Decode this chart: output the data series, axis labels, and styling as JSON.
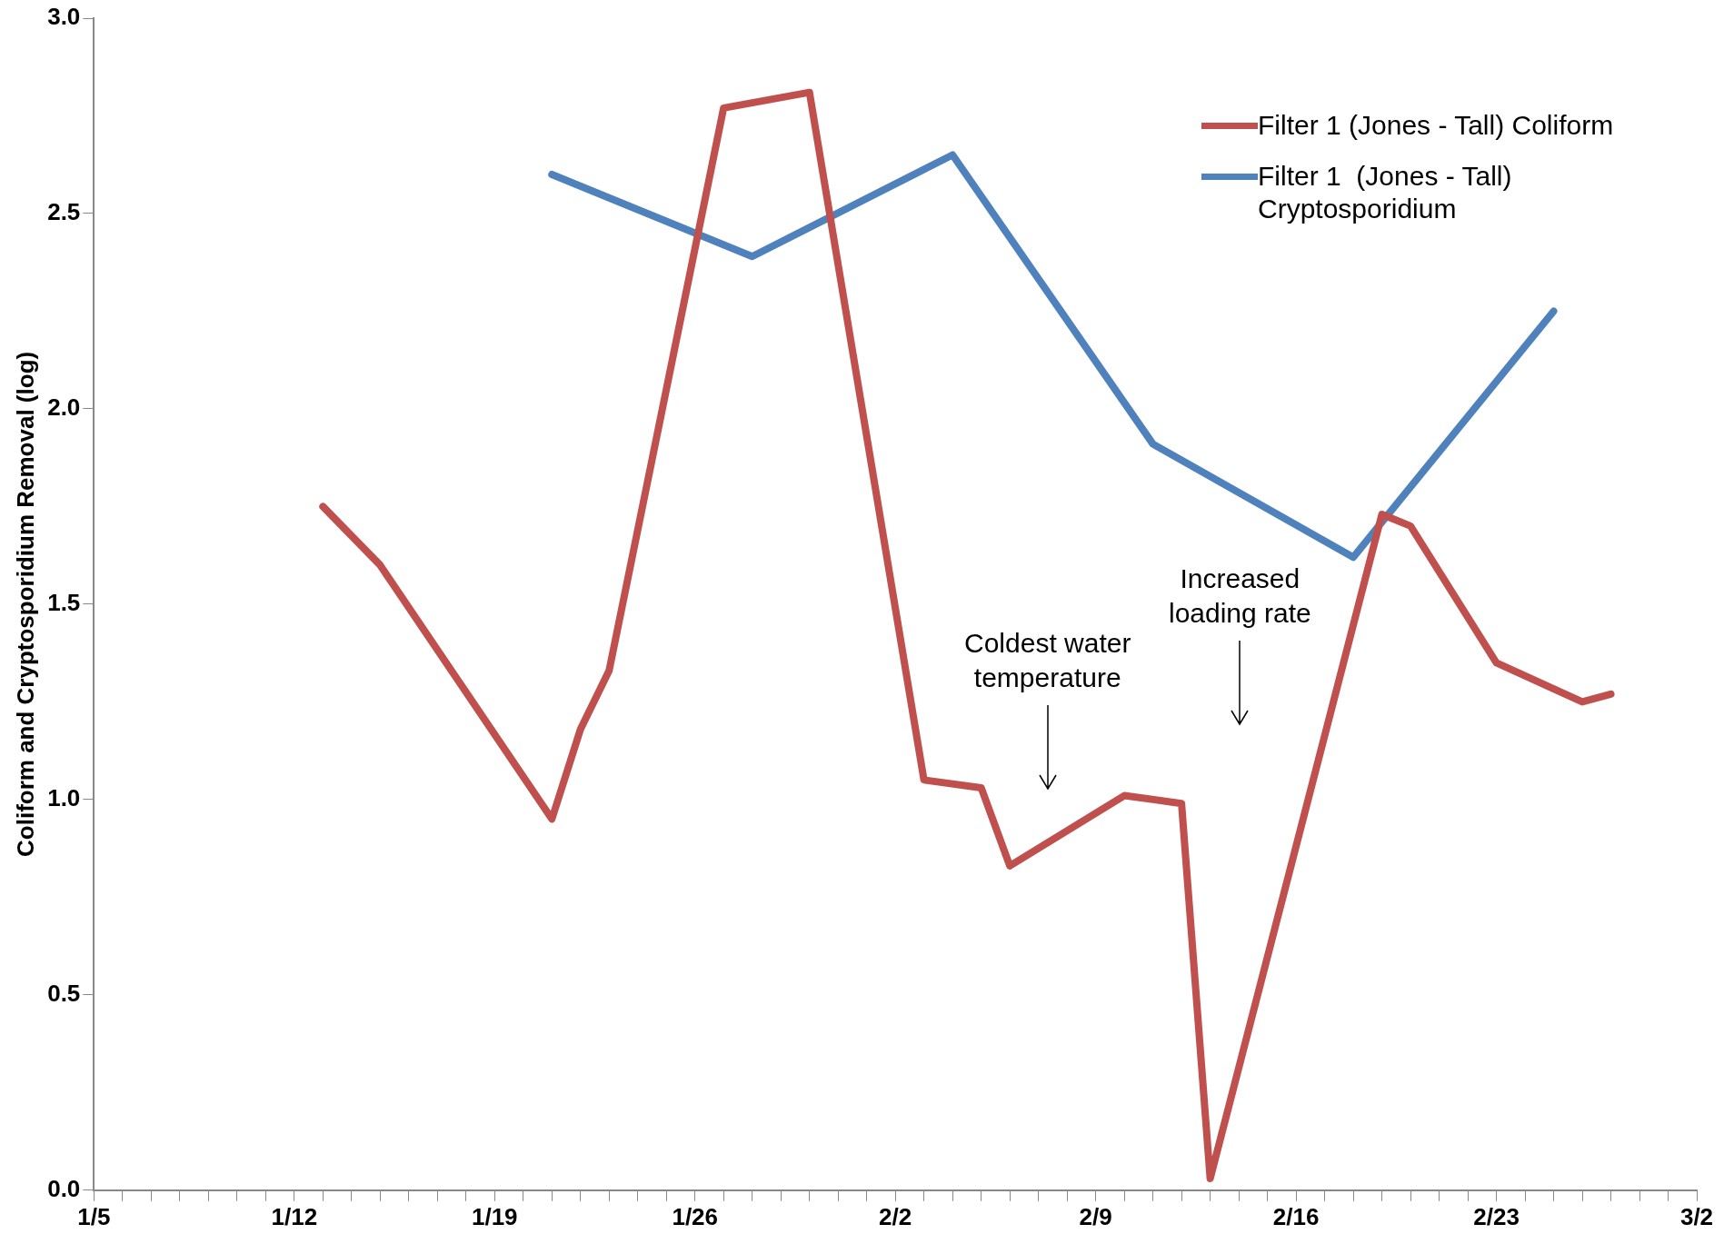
{
  "chart_data": {
    "type": "line",
    "ylabel": "Coliform and Cryptosporidium Removal (log)",
    "xlim": [
      "--01-05",
      "--03-02"
    ],
    "xticks": [
      {
        "value": "--01-05",
        "label": "1/5"
      },
      {
        "value": "--01-06",
        "label": null
      },
      {
        "value": "--01-07",
        "label": null
      },
      {
        "value": "--01-08",
        "label": null
      },
      {
        "value": "--01-09",
        "label": null
      },
      {
        "value": "--01-10",
        "label": null
      },
      {
        "value": "--01-11",
        "label": null
      },
      {
        "value": "--01-12",
        "label": "1/12"
      },
      {
        "value": "--01-13",
        "label": null
      },
      {
        "value": "--01-14",
        "label": null
      },
      {
        "value": "--01-15",
        "label": null
      },
      {
        "value": "--01-16",
        "label": null
      },
      {
        "value": "--01-17",
        "label": null
      },
      {
        "value": "--01-18",
        "label": null
      },
      {
        "value": "--01-19",
        "label": "1/19"
      },
      {
        "value": "--01-20",
        "label": null
      },
      {
        "value": "--01-21",
        "label": null
      },
      {
        "value": "--01-22",
        "label": null
      },
      {
        "value": "--01-23",
        "label": null
      },
      {
        "value": "--01-24",
        "label": null
      },
      {
        "value": "--01-25",
        "label": null
      },
      {
        "value": "--01-26",
        "label": "1/26"
      },
      {
        "value": "--01-27",
        "label": null
      },
      {
        "value": "--01-28",
        "label": null
      },
      {
        "value": "--01-29",
        "label": null
      },
      {
        "value": "--01-30",
        "label": null
      },
      {
        "value": "--01-31",
        "label": null
      },
      {
        "value": "--02-01",
        "label": null
      },
      {
        "value": "--02-02",
        "label": "2/2"
      },
      {
        "value": "--02-03",
        "label": null
      },
      {
        "value": "--02-04",
        "label": null
      },
      {
        "value": "--02-05",
        "label": null
      },
      {
        "value": "--02-06",
        "label": null
      },
      {
        "value": "--02-07",
        "label": null
      },
      {
        "value": "--02-08",
        "label": null
      },
      {
        "value": "--02-09",
        "label": "2/9"
      },
      {
        "value": "--02-10",
        "label": null
      },
      {
        "value": "--02-11",
        "label": null
      },
      {
        "value": "--02-12",
        "label": null
      },
      {
        "value": "--02-13",
        "label": null
      },
      {
        "value": "--02-14",
        "label": null
      },
      {
        "value": "--02-15",
        "label": null
      },
      {
        "value": "--02-16",
        "label": "2/16"
      },
      {
        "value": "--02-17",
        "label": null
      },
      {
        "value": "--02-18",
        "label": null
      },
      {
        "value": "--02-19",
        "label": null
      },
      {
        "value": "--02-20",
        "label": null
      },
      {
        "value": "--02-21",
        "label": null
      },
      {
        "value": "--02-22",
        "label": null
      },
      {
        "value": "--02-23",
        "label": "2/23"
      },
      {
        "value": "--02-24",
        "label": null
      },
      {
        "value": "--02-25",
        "label": null
      },
      {
        "value": "--02-26",
        "label": null
      },
      {
        "value": "--02-27",
        "label": null
      },
      {
        "value": "--02-28",
        "label": null
      },
      {
        "value": "--03-01",
        "label": null
      },
      {
        "value": "--03-02",
        "label": "3/2"
      }
    ],
    "ylim": [
      0,
      3
    ],
    "yticks": [
      {
        "value": 0,
        "label": "0.0"
      },
      {
        "value": 0.5,
        "label": "0.5"
      },
      {
        "value": 1,
        "label": "1.0"
      },
      {
        "value": 1.5,
        "label": "1.5"
      },
      {
        "value": 2,
        "label": "2.0"
      },
      {
        "value": 2.5,
        "label": "2.5"
      },
      {
        "value": 3,
        "label": "3.0"
      }
    ],
    "grid": false,
    "legend": "top right",
    "marker": "none",
    "line_style": "solid",
    "series": [
      {
        "name": "Filter 1 (Jones - Tall) Coliform",
        "color": "#c0504d",
        "x": [
          "--01-13",
          "--01-15",
          "--01-21",
          "--01-22",
          "--01-23",
          "--01-27",
          "--01-30",
          "--02-03",
          "--02-05",
          "--02-06",
          "--02-10",
          "--02-12",
          "--02-13",
          "--02-19",
          "--02-20",
          "--02-23",
          "--02-26",
          "--02-27"
        ],
        "values": [
          1.75,
          1.6,
          0.95,
          1.18,
          1.33,
          2.77,
          2.81,
          1.05,
          1.03,
          0.83,
          1.01,
          0.99,
          0.03,
          1.73,
          1.7,
          1.35,
          1.25,
          1.27
        ]
      },
      {
        "name": "Filter 1  (Jones - Tall) Cryptosporidium",
        "color": "#4f81bd",
        "x": [
          "--01-21",
          "--01-28",
          "--02-04",
          "--02-11",
          "--02-18",
          "--02-25"
        ],
        "values": [
          2.6,
          2.39,
          2.65,
          1.91,
          1.62,
          2.25
        ]
      }
    ],
    "annotations": [
      "Coldest water temperature",
      "Increased loading rate"
    ]
  }
}
